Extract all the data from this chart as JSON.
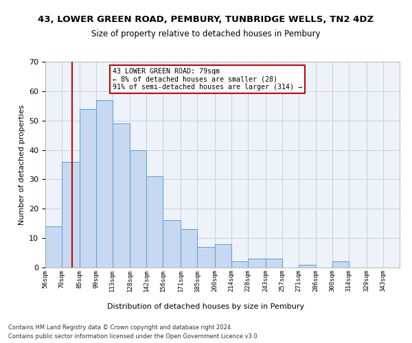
{
  "title1": "43, LOWER GREEN ROAD, PEMBURY, TUNBRIDGE WELLS, TN2 4DZ",
  "title2": "Size of property relative to detached houses in Pembury",
  "xlabel": "Distribution of detached houses by size in Pembury",
  "ylabel": "Number of detached properties",
  "bar_labels": [
    "56sqm",
    "70sqm",
    "85sqm",
    "99sqm",
    "113sqm",
    "128sqm",
    "142sqm",
    "156sqm",
    "171sqm",
    "185sqm",
    "200sqm",
    "214sqm",
    "228sqm",
    "243sqm",
    "257sqm",
    "271sqm",
    "286sqm",
    "300sqm",
    "314sqm",
    "329sqm",
    "343sqm"
  ],
  "bar_values": [
    14,
    36,
    54,
    57,
    49,
    40,
    31,
    16,
    13,
    7,
    8,
    2,
    3,
    3,
    0,
    1,
    0,
    2,
    0,
    0,
    0
  ],
  "bar_color": "#c6d9f0",
  "bar_edge_color": "#5b9bd5",
  "property_line_x": 79,
  "bin_edges": [
    56,
    70,
    85,
    99,
    113,
    128,
    142,
    156,
    171,
    185,
    200,
    214,
    228,
    243,
    257,
    271,
    286,
    300,
    314,
    329,
    343,
    357
  ],
  "annotation_text": "43 LOWER GREEN ROAD: 79sqm\n← 8% of detached houses are smaller (28)\n91% of semi-detached houses are larger (314) →",
  "annotation_box_color": "#ffffff",
  "annotation_box_edge": "#cc0000",
  "line_color": "#cc0000",
  "ylim": [
    0,
    70
  ],
  "yticks": [
    0,
    10,
    20,
    30,
    40,
    50,
    60,
    70
  ],
  "background_color": "#eef2f9",
  "footer1": "Contains HM Land Registry data © Crown copyright and database right 2024.",
  "footer2": "Contains public sector information licensed under the Open Government Licence v3.0."
}
